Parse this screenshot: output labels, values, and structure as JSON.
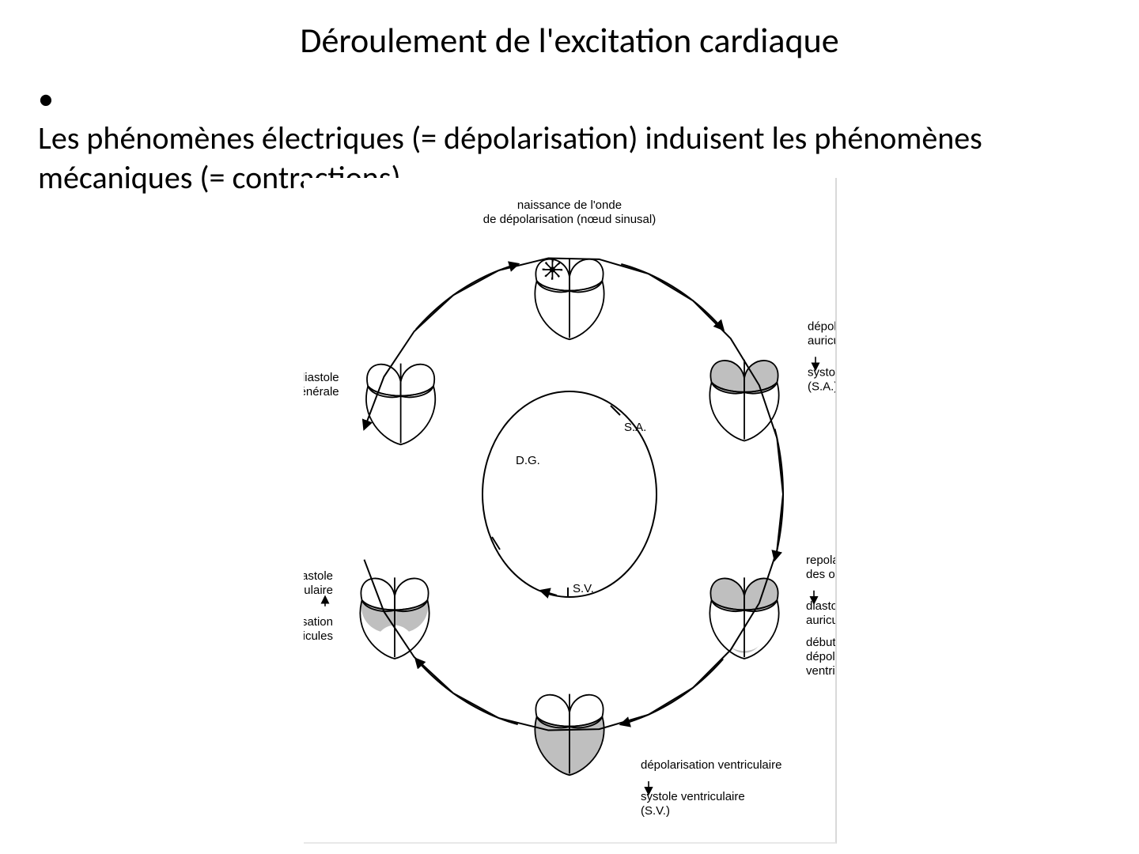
{
  "type": "diagram",
  "title": "Déroulement de l'excitation cardiaque",
  "bullet": "Les phénomènes électriques (= dépolarisation) induisent les phénomènes mécaniques (= contractions)",
  "figure": {
    "background_color": "#ffffff",
    "stroke_color": "#000000",
    "fill_shade": "#bfbfbf",
    "label_font_family": "Arial",
    "label_fontsize": 15,
    "center_labels": {
      "dg": "D.G.",
      "sa": "S.A.",
      "sv": "S.V."
    },
    "stages": [
      {
        "id": "n1",
        "angle_deg": 90,
        "caption_lines": [
          "naissance de l'onde",
          "de dépolarisation (nœud sinusal)"
        ],
        "shade": "none",
        "marker": "star"
      },
      {
        "id": "n2",
        "angle_deg": 30,
        "caption_lines": [
          "dépolarisation",
          "auriculaire",
          "↓",
          "systole auriculaire",
          "(S.A.)"
        ],
        "shade": "atria"
      },
      {
        "id": "n3",
        "angle_deg": -30,
        "caption_lines": [
          "repolarisation",
          "des oreillettes",
          "↓",
          "diastole",
          "auriculaire",
          "",
          "début de la",
          "dépolarisation",
          "ventriculaire"
        ],
        "shade": "atria_and_vtip"
      },
      {
        "id": "n4",
        "angle_deg": -90,
        "caption_lines": [
          "dépolarisation ventriculaire",
          "↓",
          "systole ventriculaire",
          "(S.V.)"
        ],
        "shade": "ventricles"
      },
      {
        "id": "n5",
        "angle_deg": -150,
        "caption_lines": [
          "diastole",
          "ventriculaire",
          "↑",
          "repolarisation",
          "des ventricules"
        ],
        "shade": "vbase"
      },
      {
        "id": "n6",
        "angle_deg": 150,
        "caption_lines": [
          "diastole",
          "générale"
        ],
        "shade": "none"
      }
    ]
  }
}
